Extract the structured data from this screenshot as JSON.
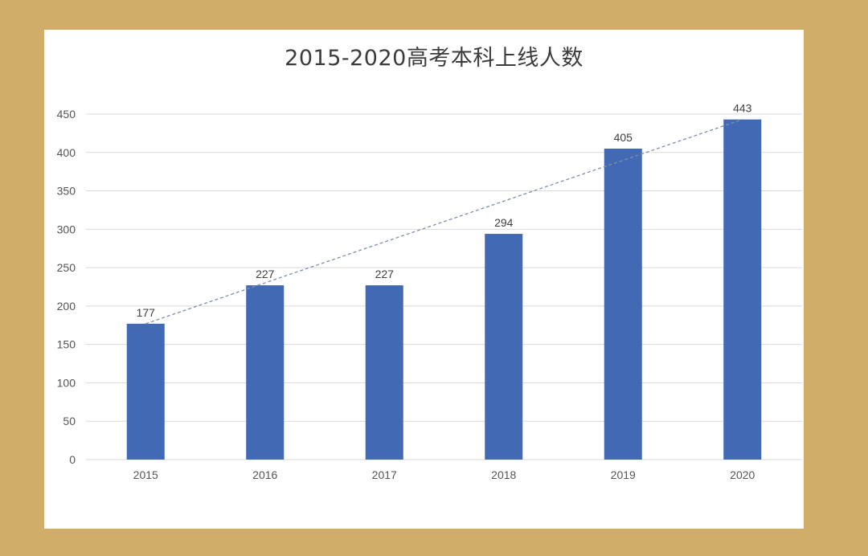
{
  "chart_data": {
    "type": "bar",
    "title": "2015-2020高考本科上线人数",
    "categories": [
      "2015",
      "2016",
      "2017",
      "2018",
      "2019",
      "2020"
    ],
    "values": [
      177,
      227,
      227,
      294,
      405,
      443
    ],
    "ylim": [
      0,
      450
    ],
    "yticks": [
      0,
      50,
      100,
      150,
      200,
      250,
      300,
      350,
      400,
      450
    ],
    "grid": true,
    "data_labels": true,
    "trendline": "dashed",
    "colors": {
      "bar": "#4169b4",
      "grid": "#d9d9d9",
      "trendline": "#7f8ea8",
      "border": "#d1ad6a"
    }
  }
}
